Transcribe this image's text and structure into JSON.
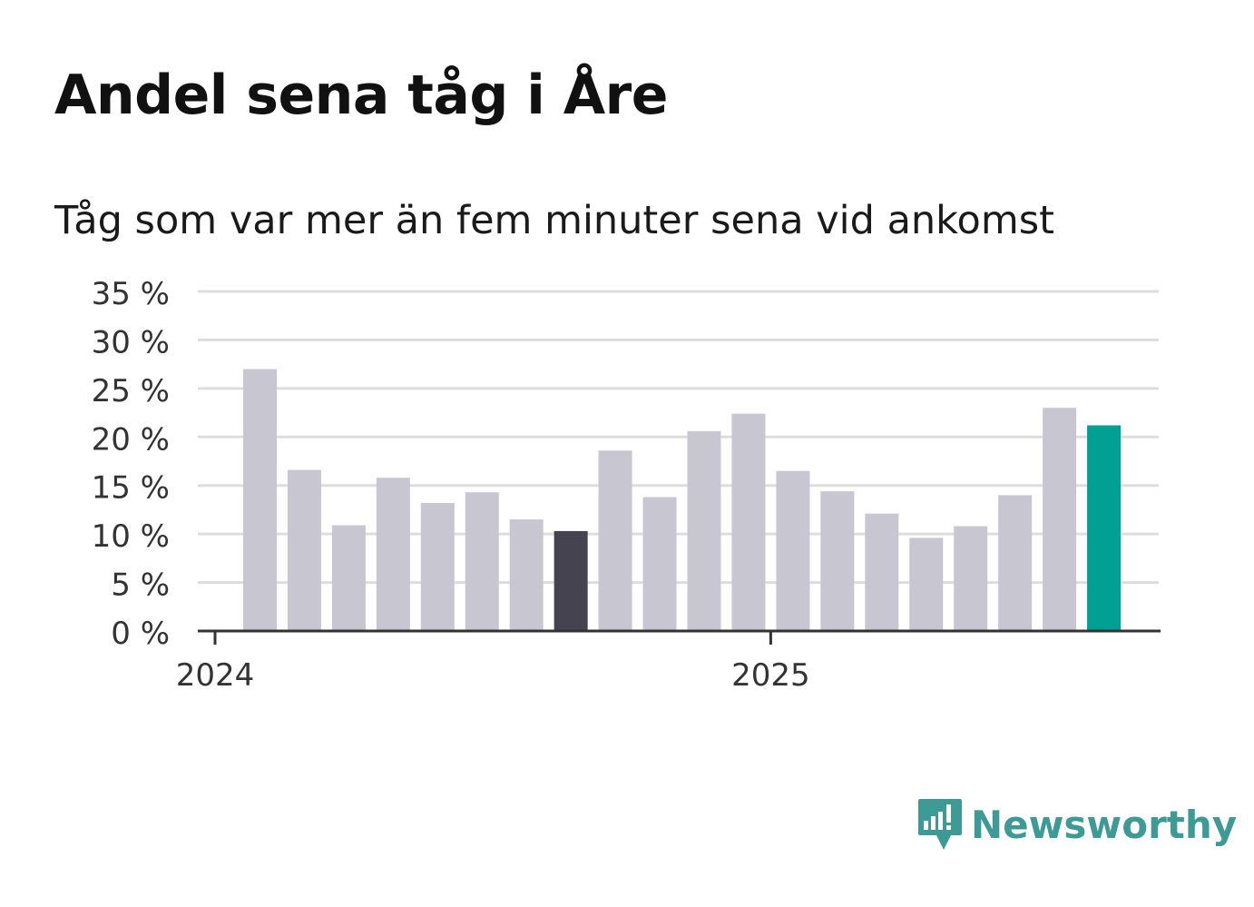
{
  "title": "Andel sena tåg i Åre",
  "subtitle": "Tåg som var mer än fem minuter sena vid ankomst",
  "brand": {
    "name": "Newsworthy",
    "color": "#3e9a95"
  },
  "colors": {
    "bar": "#c8c7d1",
    "highlight_prev": "#44434f",
    "highlight_latest": "#00a195",
    "grid": "#dddddd",
    "axis": "#333333",
    "text": "#333333"
  },
  "chart_data": {
    "type": "bar",
    "title": "Andel sena tåg i Åre",
    "subtitle": "Tåg som var mer än fem minuter sena vid ankomst",
    "xlabel": "",
    "ylabel": "",
    "ylim": [
      0,
      35
    ],
    "yticks": [
      0,
      5,
      10,
      15,
      20,
      25,
      30,
      35
    ],
    "ytick_labels": [
      "0 %",
      "5 %",
      "10 %",
      "15 %",
      "20 %",
      "25 %",
      "30 %",
      "35 %"
    ],
    "xtick_labels": [
      {
        "label": "2024",
        "index": 0
      },
      {
        "label": "2025",
        "index": 12
      }
    ],
    "categories": [
      "2024-01",
      "2024-02",
      "2024-03",
      "2024-04",
      "2024-05",
      "2024-06",
      "2024-07",
      "2024-08",
      "2024-09",
      "2024-10",
      "2024-11",
      "2024-12",
      "2025-01",
      "2025-02",
      "2025-03",
      "2025-04",
      "2025-05",
      "2025-06",
      "2025-07",
      "2025-08"
    ],
    "values": [
      27.0,
      16.6,
      10.9,
      15.8,
      13.2,
      14.3,
      11.5,
      10.3,
      18.6,
      13.8,
      20.6,
      22.4,
      16.5,
      14.4,
      12.1,
      9.6,
      10.8,
      14.0,
      23.0,
      21.2
    ],
    "highlight": {
      "previous_index": 7,
      "latest_index": 19
    },
    "grid": true,
    "legend": "none"
  }
}
